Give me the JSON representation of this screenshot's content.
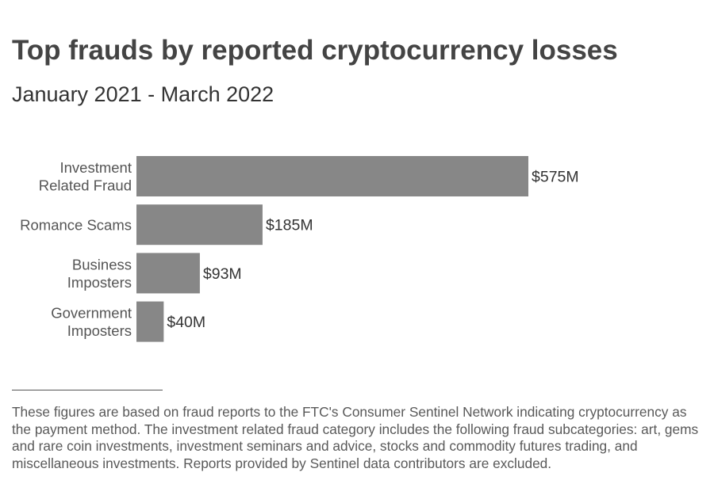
{
  "title": "Top frauds by reported cryptocurrency losses",
  "subtitle": "January 2021 - March 2022",
  "footnote": "These figures are based on fraud reports to the FTC's Consumer Sentinel Network indicating cryptocurrency as the payment method. The investment related fraud category includes the following fraud subcategories: art, gems and rare coin investments, investment seminars and advice, stocks and commodity futures trading, and miscellaneous investments. Reports provided by Sentinel data contributors are excluded.",
  "chart_data": {
    "type": "bar",
    "orientation": "horizontal",
    "title": "Top frauds by reported cryptocurrency losses",
    "subtitle": "January 2021 - March 2022",
    "categories": [
      [
        "Investment",
        "Related Fraud"
      ],
      [
        "Romance Scams"
      ],
      [
        "Business",
        "Imposters"
      ],
      [
        "Government",
        "Imposters"
      ]
    ],
    "values": [
      575,
      185,
      93,
      40
    ],
    "value_labels": [
      "$575M",
      "$185M",
      "$93M",
      "$40M"
    ],
    "units": "millions USD",
    "xlim": [
      0,
      575
    ],
    "grid": false,
    "axes_visible": false,
    "bar_color": "#878787"
  }
}
